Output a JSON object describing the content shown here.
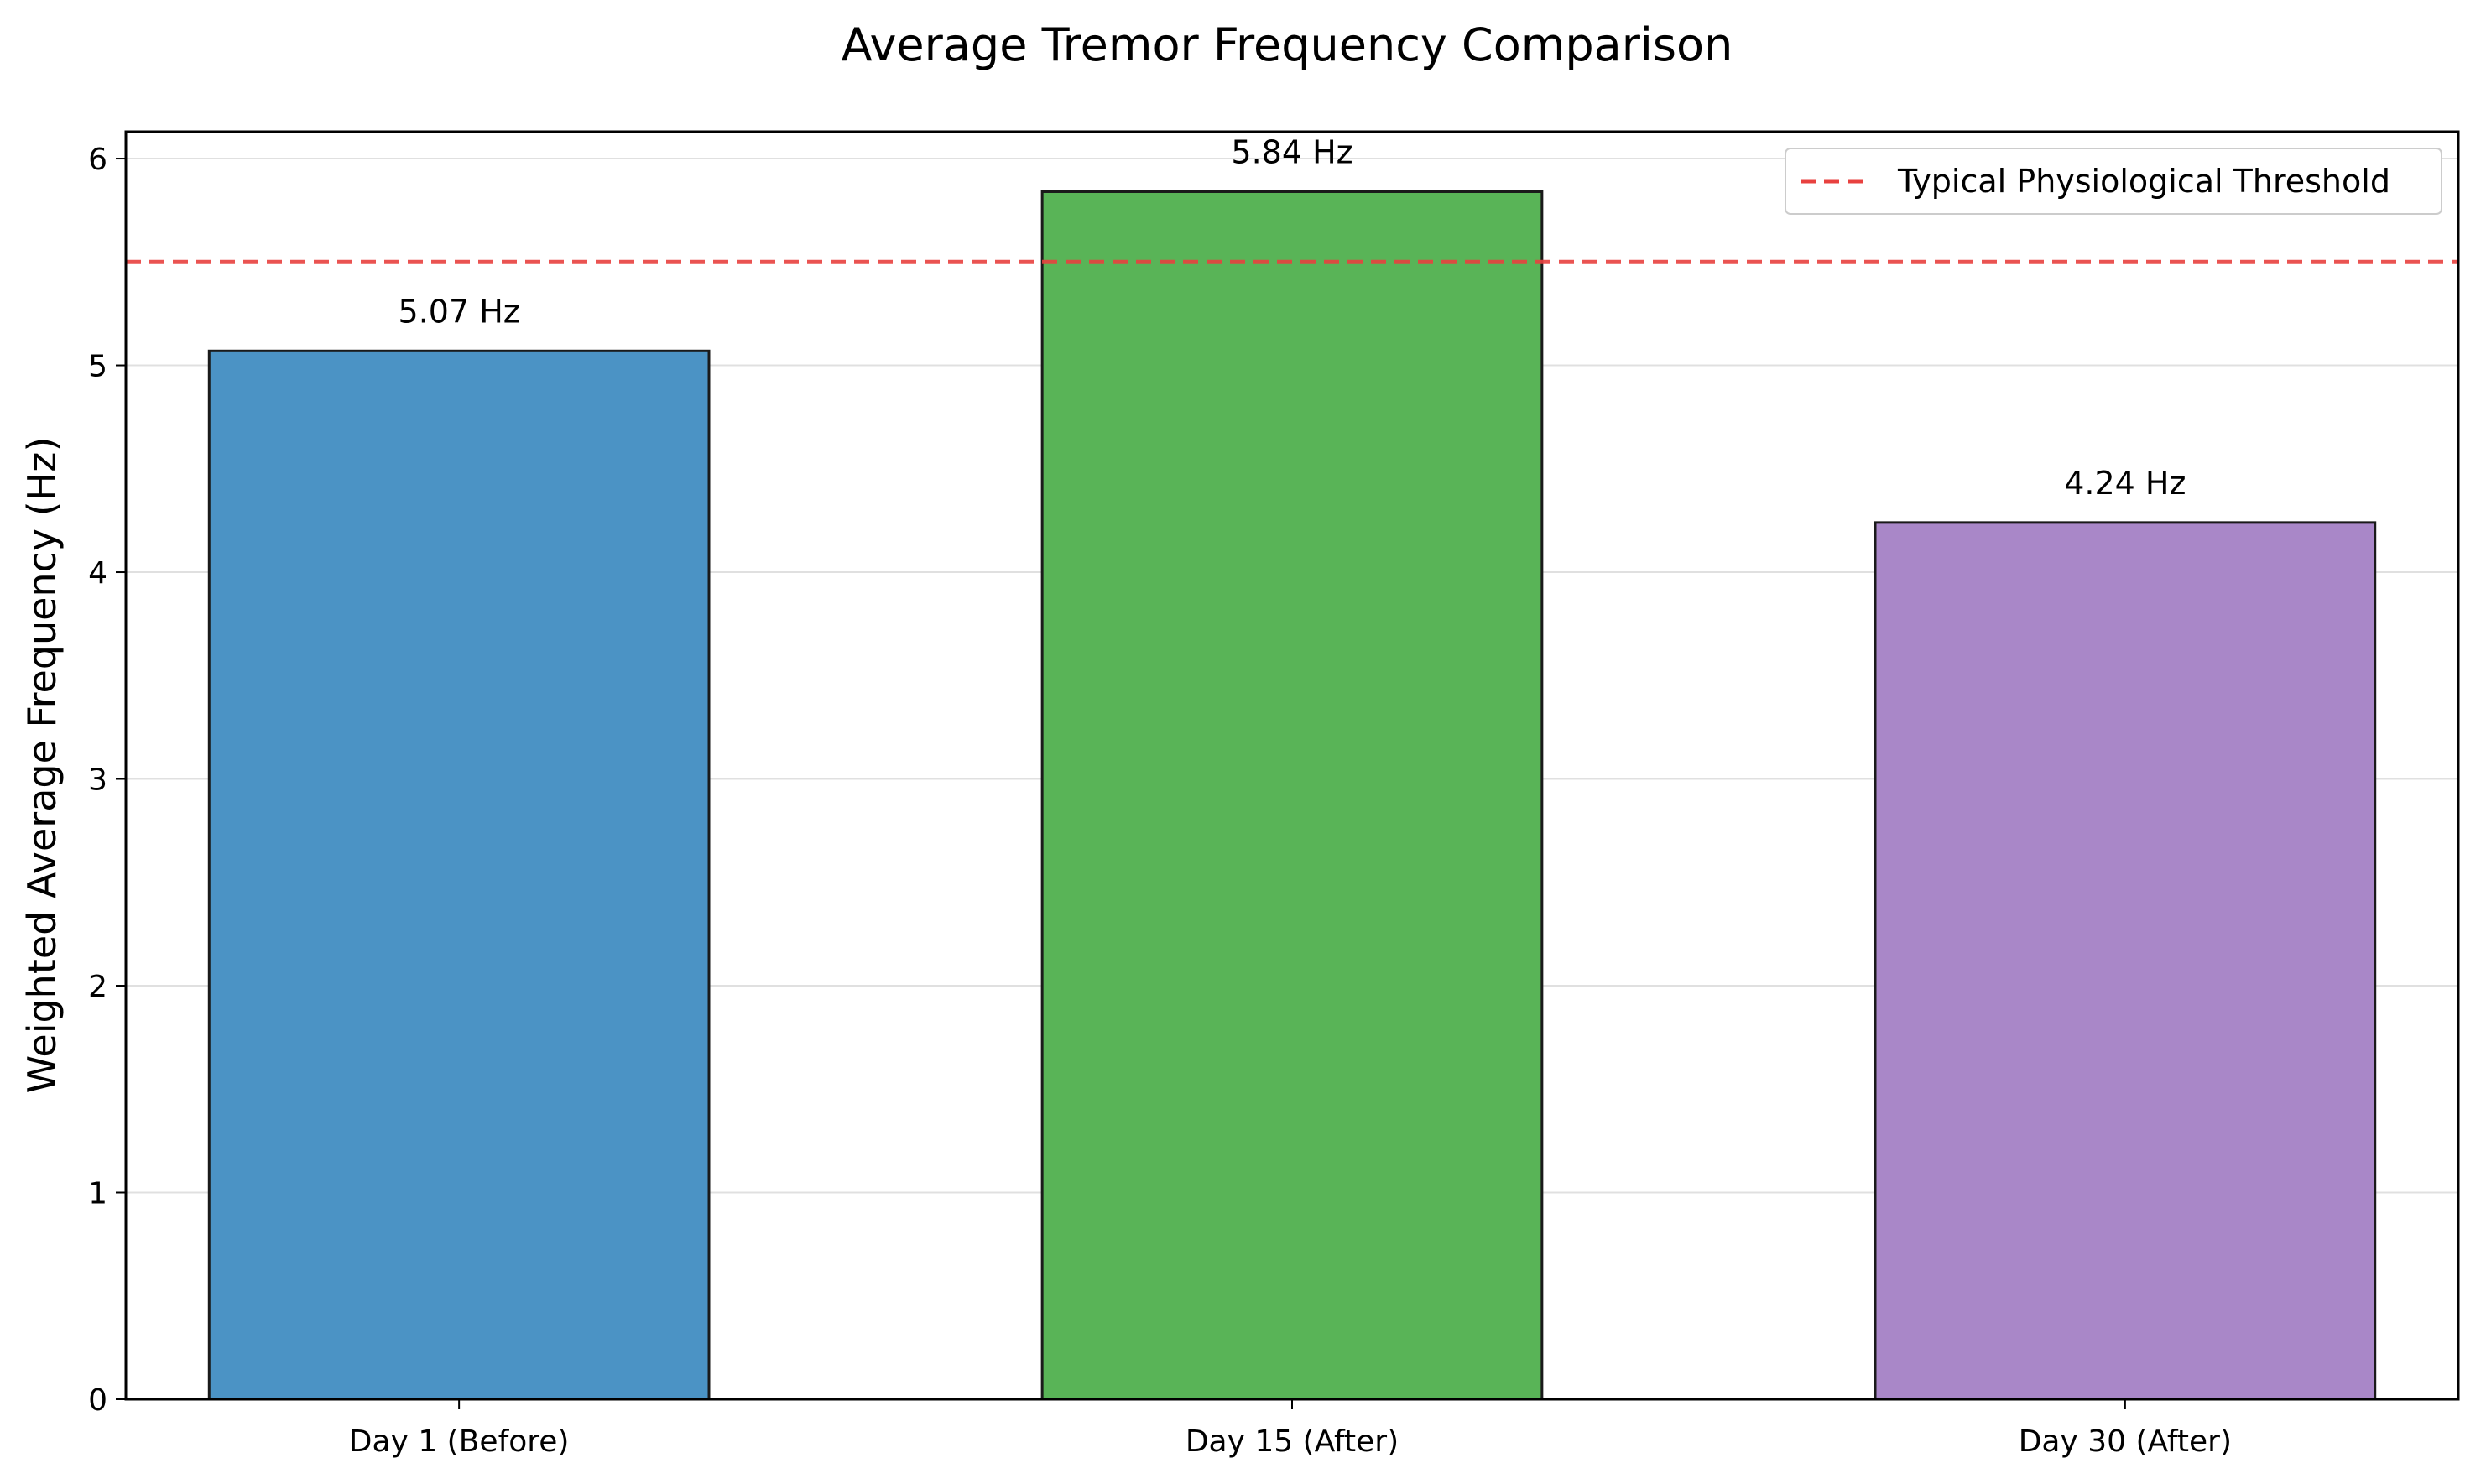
{
  "chart_data": {
    "type": "bar",
    "title": "Average Tremor Frequency Comparison",
    "xlabel": "",
    "ylabel": "Weighted Average Frequency (Hz)",
    "categories": [
      "Day 1 (Before)",
      "Day 15 (After)",
      "Day 30 (After)"
    ],
    "values": [
      5.07,
      5.84,
      4.24
    ],
    "value_labels": [
      "5.07 Hz",
      "5.84 Hz",
      "4.24 Hz"
    ],
    "bar_colors": [
      "#4b93c5",
      "#59b457",
      "#a987c8"
    ],
    "bar_edge_color": "#1a1a1a",
    "ylim": [
      0,
      6.13
    ],
    "yticks": [
      0,
      1,
      2,
      3,
      4,
      5,
      6
    ],
    "grid": "horizontal",
    "reference_line": {
      "name": "Typical Physiological Threshold",
      "value": 5.5,
      "color": "#e8413f",
      "style": "dashed"
    },
    "legend_position": "top-right"
  }
}
